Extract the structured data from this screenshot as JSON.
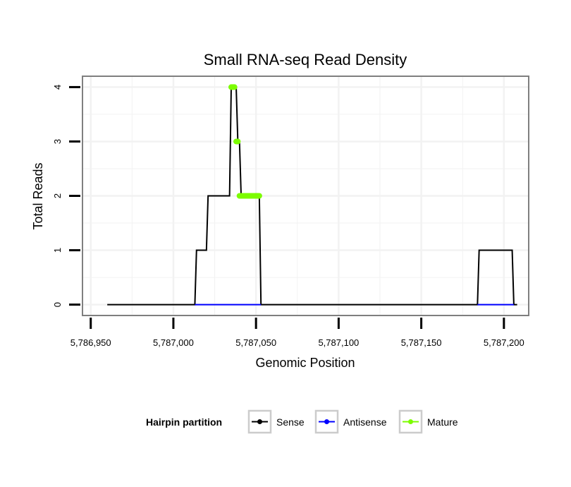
{
  "chart_data": {
    "type": "line",
    "title": "Small RNA-seq Read Density",
    "xlabel": "Genomic Position",
    "ylabel": "Total Reads",
    "xlim": [
      5786945,
      5787215
    ],
    "ylim": [
      -0.2,
      4.2
    ],
    "x_ticks": [
      5786950,
      5787000,
      5787050,
      5787100,
      5787150,
      5787200
    ],
    "x_tick_labels": [
      "5,786,950",
      "5,787,000",
      "5,787,050",
      "5,787,100",
      "5,787,150",
      "5,787,200"
    ],
    "y_ticks": [
      0,
      1,
      2,
      3,
      4
    ],
    "y_tick_labels": [
      "0",
      "1",
      "2",
      "3",
      "4"
    ],
    "grid": true,
    "legend": {
      "title": "Hairpin partition",
      "placement": "bottom",
      "entries": [
        {
          "name": "Sense",
          "color": "#000000"
        },
        {
          "name": "Antisense",
          "color": "#0000ff"
        },
        {
          "name": "Mature",
          "color": "#7cfc00"
        }
      ]
    },
    "series": [
      {
        "name": "Sense",
        "color": "#000000",
        "x": [
          5786960,
          5787013,
          5787014,
          5787020,
          5787021,
          5787034,
          5787035,
          5787038,
          5787039,
          5787040,
          5787041,
          5787052,
          5787053,
          5787184,
          5787185,
          5787205,
          5787206,
          5787208
        ],
        "y": [
          0,
          0,
          1,
          1,
          2,
          2,
          4,
          4,
          3,
          3,
          2,
          2,
          0,
          0,
          1,
          1,
          0,
          0
        ]
      },
      {
        "name": "Antisense",
        "color": "#0000ff",
        "x": [
          5787013,
          5787053
        ],
        "y": [
          0,
          0
        ]
      },
      {
        "name": "Antisense",
        "color": "#0000ff",
        "x": [
          5787184,
          5787206
        ],
        "y": [
          0,
          0
        ]
      },
      {
        "name": "Mature",
        "color": "#7cfc00",
        "segments": [
          {
            "x": [
              5787035,
              5787037
            ],
            "y": [
              4,
              4
            ]
          },
          {
            "x": [
              5787038,
              5787039
            ],
            "y": [
              3,
              3
            ]
          },
          {
            "x": [
              5787040,
              5787052
            ],
            "y": [
              2,
              2
            ]
          }
        ]
      }
    ]
  }
}
